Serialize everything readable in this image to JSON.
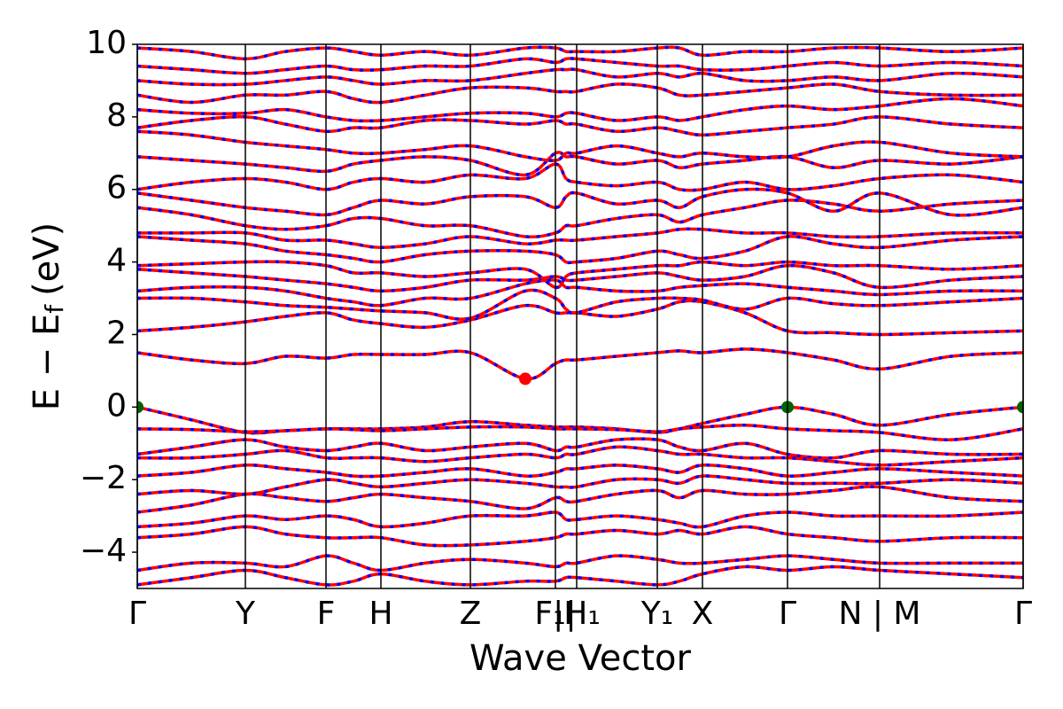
{
  "chart_data": {
    "type": "band_structure",
    "xlabel": "Wave Vector",
    "ylabel": {
      "main": "E − E",
      "sub": "f",
      "unit": "(eV)"
    },
    "xlim": [
      0,
      1000
    ],
    "ylim": [
      -5,
      10
    ],
    "yticks": [
      {
        "value": -4,
        "label": "−4"
      },
      {
        "value": -2,
        "label": "−2"
      },
      0,
      2,
      4,
      6,
      8,
      10
    ],
    "xticks": [
      {
        "value": 0,
        "label": "Γ"
      },
      {
        "value": 122,
        "label": "Y"
      },
      {
        "value": 213,
        "label": "F"
      },
      {
        "value": 275,
        "label": "H"
      },
      {
        "value": 376,
        "label": "Z"
      },
      {
        "value": 472,
        "label": "F₁|"
      },
      {
        "value": 496,
        "label": "|H₁"
      },
      {
        "value": 587,
        "label": "Y₁"
      },
      {
        "value": 638,
        "label": "X"
      },
      {
        "value": 734,
        "label": "Γ"
      },
      {
        "value": 838,
        "label": "N | M"
      },
      {
        "value": 1000,
        "label": "Γ"
      }
    ],
    "grid": true,
    "line_color": "#ff0000",
    "dash_color": "#0000ff",
    "x": [
      0,
      61,
      122,
      167,
      213,
      244,
      275,
      325,
      376,
      438,
      472,
      484,
      496,
      541,
      587,
      612,
      638,
      686,
      734,
      786,
      838,
      919,
      1000
    ],
    "series": [
      {
        "values": [
          1.5,
          1.3,
          1.2,
          1.4,
          1.35,
          1.45,
          1.45,
          1.45,
          1.5,
          0.78,
          1.2,
          1.3,
          1.3,
          1.4,
          1.5,
          1.55,
          1.5,
          1.6,
          1.5,
          1.3,
          1.05,
          1.4,
          1.5
        ]
      },
      {
        "values": [
          2.1,
          2.2,
          2.35,
          2.5,
          2.6,
          2.4,
          2.3,
          2.2,
          2.4,
          2.8,
          2.6,
          2.6,
          2.6,
          2.5,
          2.7,
          2.9,
          2.9,
          2.6,
          2.1,
          2.05,
          2.0,
          2.05,
          2.1
        ]
      },
      {
        "values": [
          3.0,
          3.0,
          2.9,
          2.8,
          2.75,
          2.7,
          2.65,
          2.6,
          2.45,
          3.2,
          3.0,
          2.7,
          2.6,
          2.9,
          3.0,
          3.0,
          2.95,
          2.7,
          3.0,
          2.85,
          2.8,
          2.9,
          3.0
        ]
      },
      {
        "values": [
          3.2,
          3.3,
          3.3,
          3.2,
          3.0,
          2.9,
          2.8,
          3.0,
          3.0,
          3.4,
          3.5,
          3.3,
          3.3,
          3.2,
          3.2,
          3.3,
          3.35,
          3.4,
          3.3,
          3.2,
          3.1,
          3.2,
          3.2
        ]
      },
      {
        "values": [
          3.8,
          3.7,
          3.6,
          3.5,
          3.4,
          3.3,
          3.2,
          3.3,
          3.5,
          3.5,
          3.6,
          3.5,
          3.5,
          3.6,
          3.7,
          3.6,
          3.5,
          3.6,
          3.9,
          3.7,
          3.3,
          3.5,
          3.6
        ]
      },
      {
        "values": [
          3.9,
          3.95,
          4.0,
          4.0,
          3.9,
          3.7,
          3.7,
          3.6,
          3.7,
          3.8,
          3.3,
          3.6,
          3.7,
          3.8,
          3.9,
          3.9,
          4.0,
          3.9,
          4.0,
          3.9,
          3.9,
          3.8,
          3.9
        ]
      },
      {
        "values": [
          4.7,
          4.6,
          4.5,
          4.3,
          4.2,
          4.1,
          4.0,
          4.2,
          4.3,
          4.3,
          4.2,
          4.0,
          4.0,
          4.1,
          4.3,
          4.2,
          4.1,
          4.3,
          4.7,
          4.5,
          4.4,
          4.6,
          4.7
        ]
      },
      {
        "values": [
          4.8,
          4.8,
          4.8,
          4.6,
          4.6,
          4.5,
          4.4,
          4.5,
          4.7,
          4.5,
          4.6,
          4.6,
          4.6,
          4.7,
          4.8,
          4.9,
          4.9,
          4.8,
          4.8,
          4.7,
          4.7,
          4.8,
          4.8
        ]
      },
      {
        "values": [
          5.5,
          5.3,
          5.0,
          4.9,
          5.0,
          5.2,
          5.2,
          5.0,
          5.0,
          4.7,
          4.8,
          5.0,
          5.0,
          5.2,
          5.3,
          5.1,
          5.3,
          5.5,
          5.7,
          5.6,
          5.4,
          5.6,
          5.7
        ]
      },
      {
        "values": [
          5.9,
          5.7,
          5.5,
          5.4,
          5.3,
          5.5,
          5.7,
          5.6,
          5.8,
          5.8,
          5.5,
          5.8,
          5.9,
          5.6,
          5.7,
          5.5,
          5.8,
          6.0,
          5.9,
          5.4,
          5.9,
          5.3,
          5.5
        ]
      },
      {
        "values": [
          6.0,
          6.2,
          6.3,
          6.2,
          6.0,
          6.2,
          6.3,
          6.2,
          6.4,
          6.3,
          6.7,
          6.3,
          6.2,
          6.1,
          6.2,
          6.0,
          6.0,
          6.2,
          6.0,
          6.1,
          6.3,
          6.4,
          6.2
        ]
      },
      {
        "values": [
          6.9,
          6.8,
          6.7,
          6.6,
          6.5,
          6.7,
          6.8,
          6.9,
          6.8,
          6.4,
          7.0,
          6.9,
          6.9,
          6.7,
          6.8,
          6.6,
          6.7,
          6.8,
          6.9,
          6.6,
          6.8,
          6.7,
          6.9
        ]
      },
      {
        "values": [
          7.6,
          7.5,
          7.3,
          7.2,
          7.1,
          7.0,
          7.0,
          7.1,
          7.2,
          6.9,
          6.8,
          7.0,
          7.0,
          7.2,
          7.0,
          6.9,
          7.0,
          6.9,
          6.9,
          7.2,
          7.3,
          7.0,
          6.9
        ]
      },
      {
        "values": [
          7.7,
          7.9,
          8.0,
          7.8,
          7.6,
          7.7,
          7.7,
          7.9,
          7.9,
          7.8,
          7.9,
          7.8,
          7.8,
          7.6,
          7.7,
          7.6,
          7.5,
          7.6,
          7.7,
          7.8,
          8.0,
          7.8,
          7.7
        ]
      },
      {
        "values": [
          8.2,
          8.1,
          8.1,
          8.2,
          8.0,
          7.9,
          7.9,
          8.0,
          8.1,
          8.1,
          8.0,
          8.1,
          8.1,
          7.9,
          8.0,
          7.9,
          8.0,
          8.2,
          8.3,
          8.2,
          8.3,
          8.5,
          8.3
        ]
      },
      {
        "values": [
          8.6,
          8.4,
          8.6,
          8.6,
          8.7,
          8.5,
          8.4,
          8.6,
          8.8,
          8.8,
          8.7,
          8.7,
          8.7,
          8.9,
          8.8,
          8.6,
          8.6,
          8.7,
          8.8,
          8.9,
          8.7,
          8.6,
          8.6
        ]
      },
      {
        "values": [
          9.0,
          8.9,
          8.9,
          9.0,
          9.1,
          9.0,
          8.9,
          9.0,
          9.0,
          9.2,
          9.3,
          9.3,
          9.3,
          9.1,
          9.2,
          9.1,
          9.2,
          9.0,
          9.0,
          9.1,
          9.0,
          9.2,
          9.1
        ]
      },
      {
        "values": [
          9.4,
          9.3,
          9.2,
          9.3,
          9.4,
          9.3,
          9.3,
          9.4,
          9.4,
          9.6,
          9.5,
          9.6,
          9.6,
          9.5,
          9.4,
          9.4,
          9.3,
          9.3,
          9.4,
          9.5,
          9.4,
          9.5,
          9.4
        ]
      },
      {
        "values": [
          9.9,
          9.8,
          9.6,
          9.8,
          9.9,
          9.8,
          9.7,
          9.8,
          9.7,
          9.9,
          9.9,
          9.8,
          9.8,
          9.8,
          9.9,
          9.9,
          9.7,
          9.8,
          9.8,
          9.9,
          9.9,
          9.8,
          9.9
        ]
      },
      {
        "values": [
          0,
          -0.35,
          -0.7,
          -0.65,
          -0.6,
          -0.6,
          -0.6,
          -0.55,
          -0.4,
          -0.5,
          -0.55,
          -0.55,
          -0.55,
          -0.6,
          -0.7,
          -0.6,
          -0.45,
          -0.2,
          0,
          -0.2,
          -0.5,
          -0.2,
          0
        ]
      },
      {
        "values": [
          -0.6,
          -0.62,
          -0.68,
          -0.65,
          -0.6,
          -0.62,
          -0.65,
          -0.6,
          -0.55,
          -0.55,
          -0.6,
          -0.6,
          -0.6,
          -0.62,
          -0.68,
          -0.6,
          -0.55,
          -0.5,
          -0.6,
          -0.65,
          -0.7,
          -0.9,
          -0.6
        ]
      },
      {
        "values": [
          -1.3,
          -1.1,
          -0.9,
          -1.1,
          -1.2,
          -1.1,
          -1.0,
          -1.2,
          -1.1,
          -1.0,
          -1.2,
          -1.1,
          -1.1,
          -0.9,
          -0.9,
          -1.1,
          -1.2,
          -1.0,
          -1.3,
          -1.4,
          -1.2,
          -1.3,
          -1.3
        ]
      },
      {
        "values": [
          -1.4,
          -1.4,
          -1.3,
          -1.2,
          -1.4,
          -1.4,
          -1.4,
          -1.5,
          -1.4,
          -1.3,
          -1.4,
          -1.3,
          -1.3,
          -1.1,
          -1.2,
          -1.3,
          -1.3,
          -1.4,
          -1.4,
          -1.5,
          -1.6,
          -1.5,
          -1.4
        ]
      },
      {
        "values": [
          -1.9,
          -1.8,
          -1.6,
          -1.7,
          -1.8,
          -1.9,
          -1.9,
          -1.8,
          -1.7,
          -1.9,
          -1.8,
          -1.7,
          -1.7,
          -1.6,
          -1.7,
          -1.8,
          -1.6,
          -1.7,
          -1.9,
          -1.8,
          -1.7,
          -1.8,
          -1.9
        ]
      },
      {
        "values": [
          -2.4,
          -2.3,
          -2.4,
          -2.2,
          -2.0,
          -2.1,
          -2.2,
          -2.1,
          -2.0,
          -2.1,
          -2.2,
          -2.2,
          -2.2,
          -2.0,
          -2.0,
          -2.1,
          -1.9,
          -2.0,
          -2.1,
          -2.1,
          -2.1,
          -2.0,
          -2.1
        ]
      },
      {
        "values": [
          -2.9,
          -2.7,
          -2.4,
          -2.5,
          -2.6,
          -2.5,
          -2.4,
          -2.5,
          -2.6,
          -2.8,
          -2.5,
          -2.6,
          -2.6,
          -2.4,
          -2.3,
          -2.5,
          -2.3,
          -2.4,
          -2.4,
          -2.3,
          -2.2,
          -2.5,
          -2.6
        ]
      },
      {
        "values": [
          -3.3,
          -3.2,
          -3.0,
          -3.1,
          -3.0,
          -3.1,
          -3.3,
          -3.2,
          -3.0,
          -3.0,
          -2.9,
          -3.1,
          -3.1,
          -3.0,
          -3.1,
          -3.2,
          -3.3,
          -3.0,
          -2.9,
          -3.0,
          -3.0,
          -3.0,
          -2.9
        ]
      },
      {
        "values": [
          -3.6,
          -3.5,
          -3.3,
          -3.5,
          -3.6,
          -3.6,
          -3.6,
          -3.8,
          -3.8,
          -3.7,
          -3.6,
          -3.5,
          -3.5,
          -3.4,
          -3.5,
          -3.4,
          -3.5,
          -3.3,
          -3.5,
          -3.6,
          -3.7,
          -3.6,
          -3.6
        ]
      },
      {
        "values": [
          -4.5,
          -4.3,
          -4.3,
          -4.4,
          -4.1,
          -4.3,
          -4.5,
          -4.3,
          -4.2,
          -4.3,
          -4.4,
          -4.3,
          -4.3,
          -4.1,
          -4.2,
          -4.3,
          -4.3,
          -4.2,
          -4.1,
          -4.2,
          -4.3,
          -4.3,
          -4.3
        ]
      },
      {
        "values": [
          -4.9,
          -4.7,
          -4.5,
          -4.7,
          -4.9,
          -4.8,
          -4.6,
          -4.8,
          -4.9,
          -4.8,
          -4.8,
          -4.7,
          -4.7,
          -4.8,
          -4.9,
          -4.8,
          -4.6,
          -4.4,
          -4.5,
          -4.4,
          -4.5,
          -4.6,
          -4.7
        ]
      }
    ],
    "vbm": {
      "x": [
        0,
        734,
        1000
      ],
      "y": [
        0,
        0,
        0
      ],
      "color": "#006400"
    },
    "cbm": {
      "x": [
        438
      ],
      "y": [
        0.78
      ],
      "color": "#ff0000"
    }
  }
}
